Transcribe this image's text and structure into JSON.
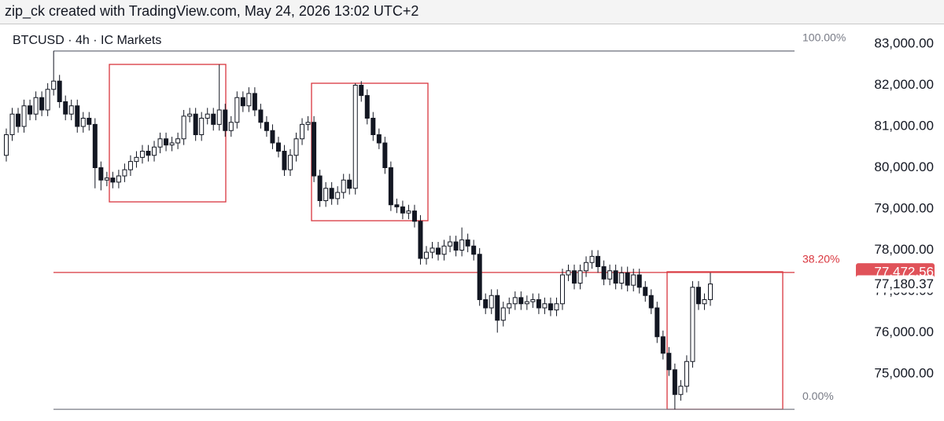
{
  "header": "zip_ck created with TradingView.com, May 24, 2026 13:02 UTC+2",
  "chart_data": {
    "type": "candlestick",
    "title": "BTCUSD · 4h · IC Markets",
    "up_color": "#ffffff",
    "down_color": "#131722",
    "outline_color": "#131722",
    "ylim": [
      73857,
      83495
    ],
    "yticks": [
      {
        "value": 75000,
        "label": "75,000.00"
      },
      {
        "value": 76000,
        "label": "76,000.00"
      },
      {
        "value": 77000,
        "label": "77,000.00"
      },
      {
        "value": 78000,
        "label": "78,000.00"
      },
      {
        "value": 79000,
        "label": "79,000.00"
      },
      {
        "value": 80000,
        "label": "80,000.00"
      },
      {
        "value": 81000,
        "label": "81,000.00"
      },
      {
        "value": 82000,
        "label": "82,000.00"
      },
      {
        "value": 83000,
        "label": "83,000.00"
      }
    ],
    "open": [
      80300,
      80800,
      81300,
      81000,
      81500,
      81300,
      81700,
      81400,
      81900,
      82100,
      81600,
      81300,
      81500,
      81000,
      81200,
      81050,
      80000,
      79700,
      79750,
      79650,
      79800,
      79950,
      80150,
      80250,
      80400,
      80300,
      80500,
      80700,
      80550,
      80600,
      80700,
      81250,
      81300,
      80800,
      81200,
      81300,
      81050,
      81400,
      80900,
      81100,
      81700,
      81500,
      81800,
      81400,
      81100,
      80900,
      80600,
      80400,
      79950,
      80300,
      80700,
      81050,
      81100,
      79800,
      79200,
      79500,
      79250,
      79400,
      79700,
      79500,
      82000,
      81750,
      81200,
      80800,
      80600,
      80000,
      79100,
      79050,
      78900,
      78950,
      78700,
      77800,
      77950,
      78050,
      77900,
      78100,
      78200,
      78000,
      78250,
      78100,
      77900,
      76800,
      76600,
      76900,
      76300,
      76600,
      76700,
      76850,
      76700,
      76750,
      76800,
      76600,
      76700,
      76550,
      76700,
      77400,
      77500,
      77200,
      77500,
      77700,
      77850,
      77600,
      77300,
      77500,
      77200,
      77450,
      77150,
      77400,
      77100,
      76900,
      76600,
      75900,
      75500,
      75100,
      74500,
      74700,
      75300,
      77100,
      76700,
      76800
    ],
    "high": [
      80950,
      81450,
      81450,
      81650,
      81650,
      81850,
      81850,
      82050,
      82830,
      82250,
      81750,
      81650,
      81650,
      81350,
      81350,
      81200,
      80150,
      79900,
      79900,
      79950,
      80100,
      80300,
      80400,
      80550,
      80550,
      80650,
      80850,
      80850,
      80750,
      80850,
      81400,
      81450,
      81450,
      81350,
      81450,
      81450,
      82500,
      81550,
      81250,
      81850,
      81850,
      81950,
      81950,
      81550,
      81250,
      81050,
      80750,
      80550,
      80450,
      80850,
      81200,
      81250,
      81250,
      79950,
      79650,
      79650,
      79550,
      79850,
      79850,
      82050,
      82100,
      81900,
      81350,
      80950,
      80750,
      80150,
      79250,
      79200,
      79100,
      79100,
      78850,
      78100,
      78200,
      78200,
      78250,
      78350,
      78350,
      78550,
      78400,
      78250,
      78050,
      76950,
      77050,
      77050,
      76750,
      76850,
      77000,
      77000,
      76900,
      76950,
      76950,
      76850,
      76850,
      76850,
      77550,
      77650,
      77650,
      77650,
      77850,
      78000,
      78000,
      77750,
      77650,
      77650,
      77600,
      77600,
      77550,
      77550,
      77250,
      77050,
      76750,
      76050,
      75650,
      75250,
      74850,
      75450,
      77250,
      77250,
      76950,
      77450
    ],
    "low": [
      80150,
      80650,
      80850,
      80850,
      81150,
      81150,
      81250,
      81250,
      81750,
      81450,
      81150,
      81150,
      80850,
      80850,
      80900,
      79500,
      79450,
      79550,
      79500,
      79500,
      79650,
      79800,
      80000,
      80100,
      80150,
      80150,
      80350,
      80400,
      80400,
      80450,
      80550,
      81100,
      80650,
      80650,
      81050,
      80900,
      80900,
      80750,
      80750,
      80950,
      81350,
      81350,
      81250,
      80950,
      80750,
      80450,
      80250,
      79800,
      79800,
      80150,
      80550,
      80900,
      79650,
      79050,
      79050,
      79100,
      79100,
      79250,
      79350,
      79350,
      81600,
      81050,
      80650,
      80450,
      79850,
      78950,
      78900,
      78750,
      78750,
      78550,
      77650,
      77650,
      77800,
      77750,
      77750,
      77950,
      77850,
      77850,
      77950,
      77750,
      76650,
      76450,
      76450,
      76000,
      76150,
      76450,
      76550,
      76550,
      76550,
      76600,
      76450,
      76450,
      76400,
      76400,
      76550,
      77250,
      77050,
      77050,
      77350,
      77550,
      77450,
      77150,
      77150,
      77050,
      77050,
      77000,
      77000,
      76950,
      76750,
      76450,
      75750,
      75350,
      74950,
      74140,
      74350,
      74550,
      75150,
      76550,
      76550,
      76650
    ],
    "close": [
      80800,
      81300,
      81000,
      81500,
      81300,
      81700,
      81400,
      81900,
      82100,
      81600,
      81300,
      81500,
      81000,
      81200,
      81050,
      80000,
      79700,
      79750,
      79650,
      79800,
      79950,
      80150,
      80250,
      80400,
      80300,
      80500,
      80700,
      80550,
      80600,
      80700,
      81250,
      81300,
      80800,
      81200,
      81300,
      81050,
      81400,
      80900,
      81100,
      81700,
      81500,
      81800,
      81400,
      81100,
      80900,
      80600,
      80400,
      79950,
      80300,
      80700,
      81050,
      81100,
      79800,
      79200,
      79500,
      79250,
      79400,
      79700,
      79500,
      82000,
      81750,
      81200,
      80800,
      80600,
      80000,
      79100,
      79050,
      78900,
      78950,
      78700,
      77800,
      77950,
      78050,
      77900,
      78100,
      78200,
      78000,
      78250,
      78100,
      77900,
      76800,
      76600,
      76900,
      76300,
      76600,
      76700,
      76850,
      76700,
      76750,
      76800,
      76600,
      76700,
      76550,
      76700,
      77400,
      77500,
      77200,
      77500,
      77700,
      77850,
      77600,
      77300,
      77500,
      77200,
      77450,
      77150,
      77400,
      77100,
      76900,
      76600,
      75900,
      75500,
      75100,
      74500,
      74700,
      75300,
      77100,
      76700,
      76800,
      77180.37
    ],
    "fib": {
      "high": 82830,
      "low": 74140,
      "levels": [
        {
          "value": 100,
          "label": "100.00%",
          "color": "#787b86"
        },
        {
          "value": 38.2,
          "label": "38.20%",
          "color": "#d9363e"
        },
        {
          "value": 0,
          "label": "0.00%",
          "color": "#787b86"
        }
      ]
    },
    "price_labels": [
      {
        "value": 77472.56,
        "label": "77,472.56",
        "color": "#e05259",
        "text_color": "#ffffff"
      },
      {
        "value": 77180.37,
        "label": "77,180.37",
        "color": "#ffffff",
        "text_color": "#131722"
      }
    ]
  }
}
